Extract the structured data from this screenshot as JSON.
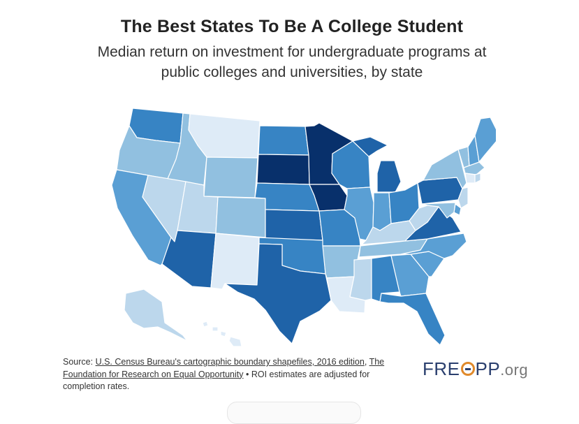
{
  "header": {
    "title": "The Best States To Be A College Student",
    "subtitle_line1": "Median return on investment for undergraduate programs at",
    "subtitle_line2": "public colleges and universities, by state"
  },
  "colors": {
    "level1": "#deebf7",
    "level2": "#bcd7ec",
    "level3": "#91c0e0",
    "level4": "#5a9fd4",
    "level5": "#3784c4",
    "level6": "#1f63a8",
    "level7": "#08306b"
  },
  "map_data": {
    "type": "choropleth",
    "shading_scale": "darker blue = higher median ROI (7 levels, 1 = lightest, 7 = darkest)",
    "states": [
      {
        "state": "WA",
        "level": 5
      },
      {
        "state": "OR",
        "level": 3
      },
      {
        "state": "CA",
        "level": 4
      },
      {
        "state": "ID",
        "level": 3
      },
      {
        "state": "NV",
        "level": 2
      },
      {
        "state": "MT",
        "level": 1
      },
      {
        "state": "WY",
        "level": 3
      },
      {
        "state": "UT",
        "level": 2
      },
      {
        "state": "CO",
        "level": 3
      },
      {
        "state": "AZ",
        "level": 6
      },
      {
        "state": "NM",
        "level": 1
      },
      {
        "state": "ND",
        "level": 5
      },
      {
        "state": "SD",
        "level": 7
      },
      {
        "state": "NE",
        "level": 5
      },
      {
        "state": "KS",
        "level": 6
      },
      {
        "state": "OK",
        "level": 5
      },
      {
        "state": "TX",
        "level": 6
      },
      {
        "state": "MN",
        "level": 7
      },
      {
        "state": "IA",
        "level": 7
      },
      {
        "state": "MO",
        "level": 5
      },
      {
        "state": "AR",
        "level": 3
      },
      {
        "state": "LA",
        "level": 1
      },
      {
        "state": "WI",
        "level": 5
      },
      {
        "state": "IL",
        "level": 4
      },
      {
        "state": "MI",
        "level": 6
      },
      {
        "state": "IN",
        "level": 4
      },
      {
        "state": "OH",
        "level": 5
      },
      {
        "state": "KY",
        "level": 2
      },
      {
        "state": "TN",
        "level": 3
      },
      {
        "state": "MS",
        "level": 2
      },
      {
        "state": "AL",
        "level": 5
      },
      {
        "state": "GA",
        "level": 4
      },
      {
        "state": "FL",
        "level": 5
      },
      {
        "state": "SC",
        "level": 4
      },
      {
        "state": "NC",
        "level": 4
      },
      {
        "state": "VA",
        "level": 6
      },
      {
        "state": "WV",
        "level": 2
      },
      {
        "state": "PA",
        "level": 6
      },
      {
        "state": "NY",
        "level": 3
      },
      {
        "state": "VT",
        "level": 3
      },
      {
        "state": "NH",
        "level": 4
      },
      {
        "state": "ME",
        "level": 4
      },
      {
        "state": "MA",
        "level": 3
      },
      {
        "state": "CT",
        "level": 1
      },
      {
        "state": "RI",
        "level": 2
      },
      {
        "state": "NJ",
        "level": 2
      },
      {
        "state": "DE",
        "level": 4
      },
      {
        "state": "MD",
        "level": 3
      },
      {
        "state": "AK",
        "level": 2
      },
      {
        "state": "HI",
        "level": 1
      }
    ]
  },
  "footer": {
    "source_prefix": "Source: ",
    "source_link1": "U.S. Census Bureau's cartographic boundary shapefiles, 2016 edition",
    "source_sep": ", ",
    "source_link2": "The Foundation for Research on Equal Opportunity",
    "source_note": " • ROI estimates are adjusted for completion rates.",
    "logo_part1": "FRE",
    "logo_part2": "PP",
    "logo_suffix": ".org"
  }
}
